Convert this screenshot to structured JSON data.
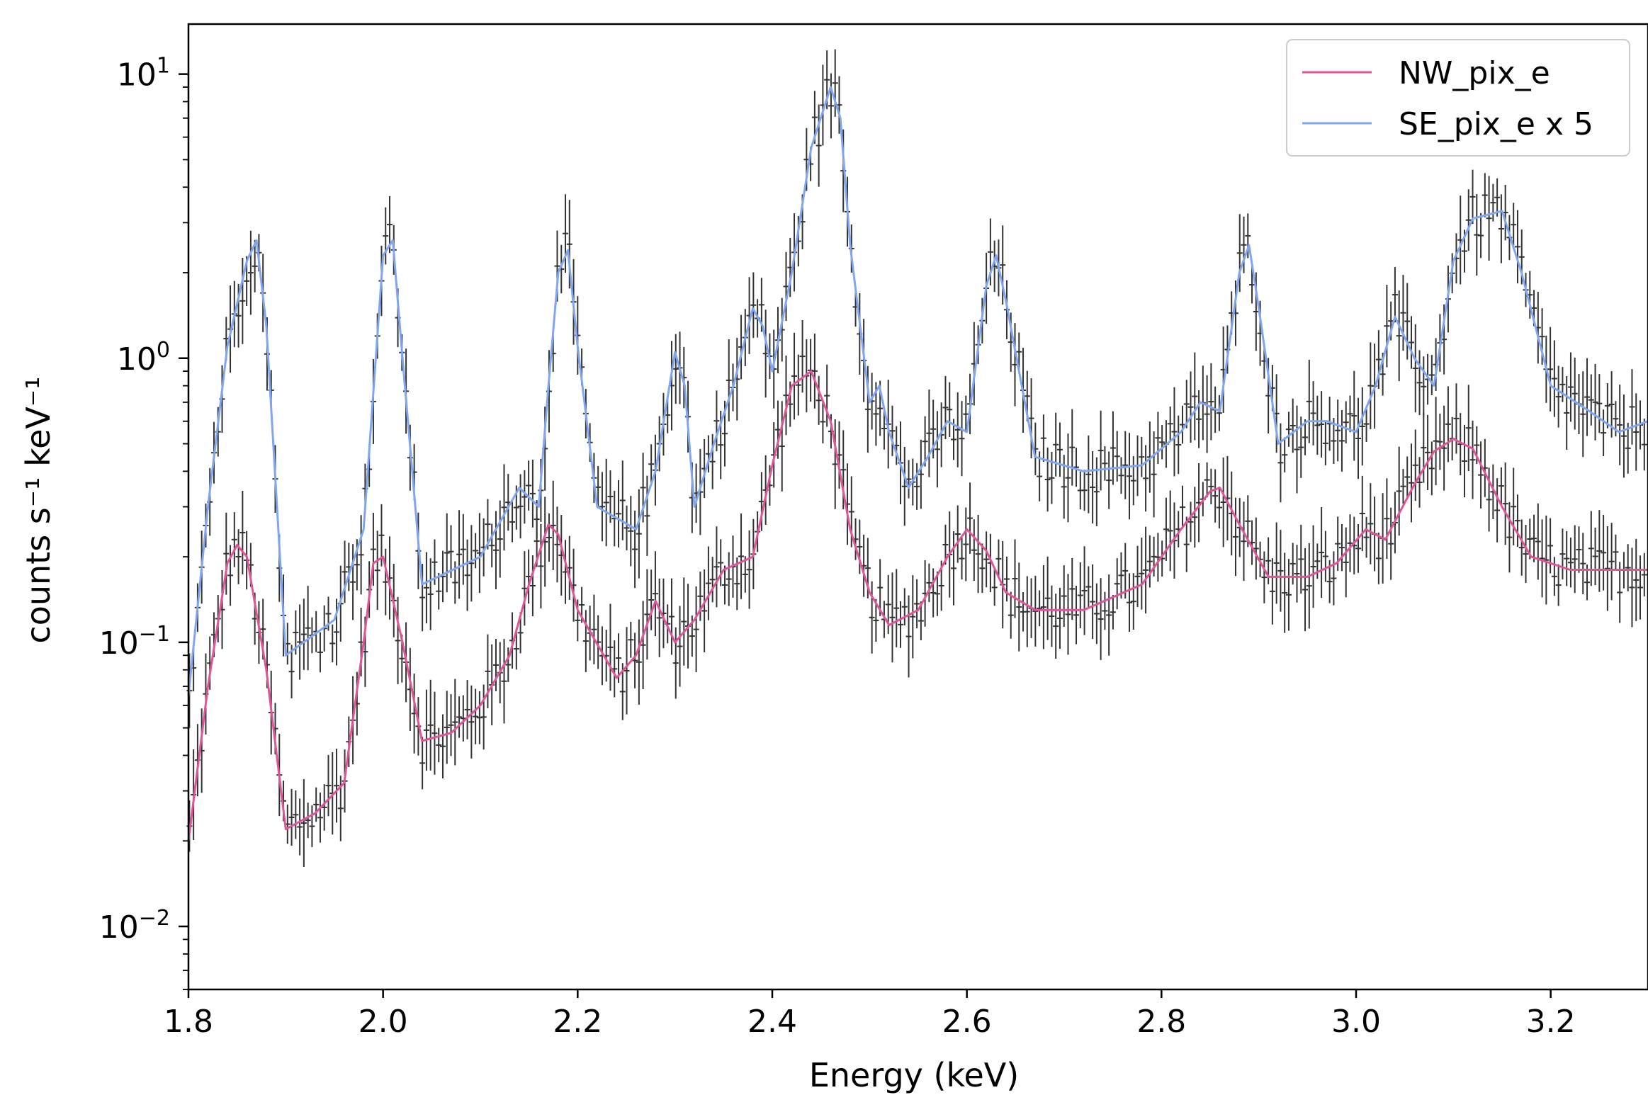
{
  "chart_data": {
    "type": "line",
    "xlabel": "Energy (keV)",
    "ylabel": "counts s⁻¹ keV⁻¹",
    "xlim": [
      1.8,
      3.3
    ],
    "ylim": [
      0.006,
      15
    ],
    "yscale": "log",
    "xticks": [
      "1.8",
      "2.0",
      "2.2",
      "2.4",
      "2.6",
      "2.8",
      "3.0",
      "3.2"
    ],
    "yticks": [
      {
        "base": "10",
        "exp": "1"
      },
      {
        "base": "10",
        "exp": "0"
      },
      {
        "base": "10",
        "exp": "−1"
      },
      {
        "base": "10",
        "exp": "−2"
      }
    ],
    "legend_position": "top-right",
    "series": [
      {
        "name": "NW_pix_e",
        "color": "#e0559a",
        "x": [
          1.8,
          1.82,
          1.84,
          1.85,
          1.86,
          1.88,
          1.9,
          1.93,
          1.96,
          1.98,
          1.99,
          2.0,
          2.02,
          2.04,
          2.07,
          2.1,
          2.13,
          2.15,
          2.17,
          2.18,
          2.2,
          2.24,
          2.26,
          2.28,
          2.3,
          2.32,
          2.35,
          2.38,
          2.4,
          2.42,
          2.44,
          2.46,
          2.48,
          2.5,
          2.52,
          2.55,
          2.58,
          2.6,
          2.62,
          2.64,
          2.67,
          2.72,
          2.78,
          2.82,
          2.85,
          2.86,
          2.88,
          2.91,
          2.95,
          2.98,
          3.01,
          3.03,
          3.06,
          3.08,
          3.1,
          3.12,
          3.15,
          3.18,
          3.22,
          3.26,
          3.3
        ],
        "y": [
          0.02,
          0.07,
          0.19,
          0.22,
          0.2,
          0.08,
          0.022,
          0.025,
          0.032,
          0.1,
          0.19,
          0.2,
          0.1,
          0.045,
          0.048,
          0.06,
          0.09,
          0.16,
          0.26,
          0.24,
          0.13,
          0.075,
          0.09,
          0.14,
          0.1,
          0.12,
          0.18,
          0.2,
          0.42,
          0.8,
          0.9,
          0.6,
          0.25,
          0.15,
          0.115,
          0.13,
          0.2,
          0.25,
          0.21,
          0.15,
          0.13,
          0.13,
          0.16,
          0.25,
          0.34,
          0.35,
          0.26,
          0.17,
          0.17,
          0.19,
          0.25,
          0.23,
          0.36,
          0.47,
          0.52,
          0.48,
          0.3,
          0.2,
          0.18,
          0.18,
          0.18
        ]
      },
      {
        "name": "SE_pix_e x 5",
        "color": "#7fa6f0",
        "x": [
          1.8,
          1.82,
          1.84,
          1.86,
          1.87,
          1.88,
          1.9,
          1.95,
          1.98,
          2.0,
          2.01,
          2.02,
          2.04,
          2.1,
          2.14,
          2.16,
          2.17,
          2.18,
          2.19,
          2.2,
          2.22,
          2.26,
          2.28,
          2.3,
          2.31,
          2.32,
          2.34,
          2.36,
          2.38,
          2.39,
          2.4,
          2.42,
          2.44,
          2.46,
          2.47,
          2.48,
          2.5,
          2.51,
          2.52,
          2.54,
          2.56,
          2.58,
          2.6,
          2.62,
          2.63,
          2.64,
          2.67,
          2.72,
          2.78,
          2.82,
          2.84,
          2.86,
          2.88,
          2.89,
          2.9,
          2.92,
          2.95,
          2.97,
          3.0,
          3.02,
          3.04,
          3.06,
          3.08,
          3.1,
          3.12,
          3.15,
          3.17,
          3.2,
          3.24,
          3.27,
          3.3
        ],
        "y": [
          0.065,
          0.3,
          1.1,
          2.2,
          2.6,
          1.3,
          0.09,
          0.12,
          0.25,
          2.3,
          2.6,
          1.0,
          0.16,
          0.2,
          0.35,
          0.3,
          0.8,
          2.0,
          2.4,
          1.1,
          0.3,
          0.25,
          0.4,
          1.05,
          0.8,
          0.3,
          0.5,
          0.8,
          1.5,
          1.3,
          0.9,
          2.0,
          5.5,
          9.0,
          7.0,
          2.5,
          0.7,
          0.8,
          0.55,
          0.35,
          0.45,
          0.6,
          0.55,
          1.8,
          2.3,
          1.6,
          0.45,
          0.4,
          0.42,
          0.55,
          0.7,
          0.65,
          2.0,
          2.5,
          1.5,
          0.5,
          0.6,
          0.6,
          0.55,
          0.8,
          1.4,
          1.0,
          0.8,
          2.2,
          3.1,
          3.3,
          2.0,
          0.8,
          0.65,
          0.55,
          0.6
        ]
      }
    ]
  }
}
